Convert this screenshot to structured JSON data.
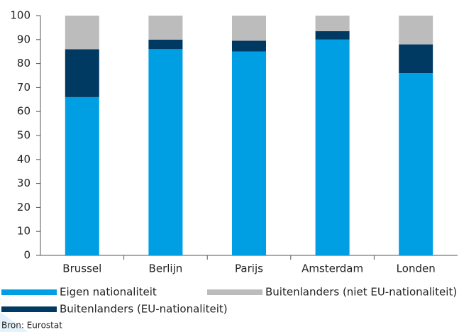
{
  "chart_data": {
    "type": "stacked_bar",
    "categories": [
      "Brussel",
      "Berlijn",
      "Parijs",
      "Amsterdam",
      "Londen"
    ],
    "series": [
      {
        "name": "Eigen nationaliteit",
        "color": "#009fe3",
        "values": [
          66,
          86,
          85,
          90,
          76
        ]
      },
      {
        "name": "Buitenlanders (EU-nationaliteit)",
        "color": "#003a63",
        "values": [
          20,
          4,
          4.5,
          3.5,
          12
        ]
      },
      {
        "name": "Buitenlanders (niet EU-nationaliteit)",
        "color": "#bcbcbc",
        "values": [
          14,
          10,
          10.5,
          6.5,
          12
        ]
      }
    ],
    "ylim": [
      0,
      100
    ],
    "yticks": [
      0,
      10,
      20,
      30,
      40,
      50,
      60,
      70,
      80,
      90,
      100
    ],
    "source": "Bron: Eurostat"
  }
}
